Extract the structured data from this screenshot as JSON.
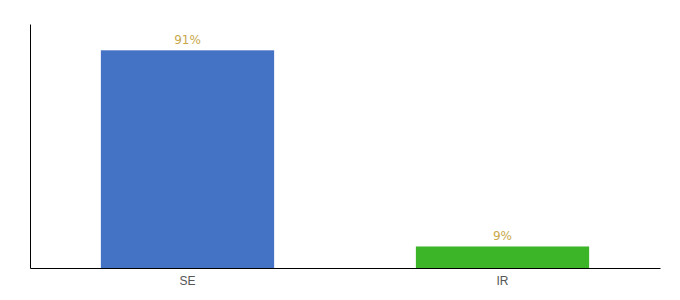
{
  "chart_data": {
    "type": "bar",
    "categories": [
      "SE",
      "IR"
    ],
    "values": [
      91,
      9
    ],
    "value_labels": [
      "91%",
      "9%"
    ],
    "colors": [
      "#4472c4",
      "#3cb528"
    ],
    "ylim": [
      0,
      102
    ],
    "data_labels": true,
    "tick_labels": "x",
    "grid": false
  }
}
